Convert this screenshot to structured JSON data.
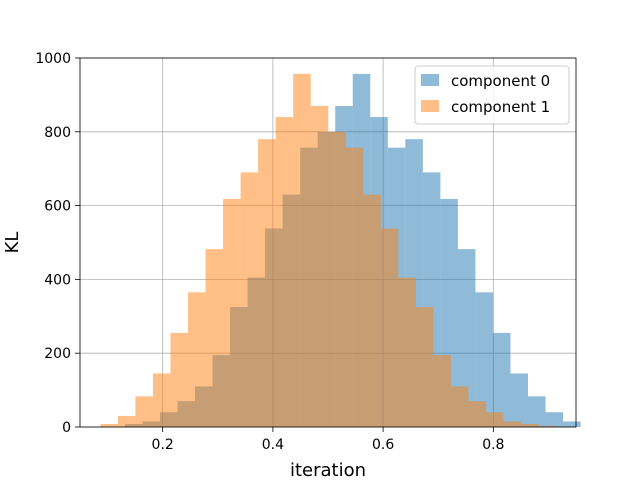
{
  "chart_data": {
    "type": "bar",
    "title": "",
    "xlabel": "iteration",
    "ylabel": "KL",
    "xlim": [
      0.05,
      0.95
    ],
    "ylim": [
      0,
      1000
    ],
    "xticks": [
      0.2,
      0.4,
      0.6,
      0.8
    ],
    "xtick_labels": [
      "0.2",
      "0.4",
      "0.6",
      "0.8"
    ],
    "yticks": [
      0,
      200,
      400,
      600,
      800,
      1000
    ],
    "ytick_labels": [
      "0",
      "200",
      "400",
      "600",
      "800",
      "1000"
    ],
    "grid": true,
    "legend_position": "top-right",
    "bin_edges": [
      0.087,
      0.1188,
      0.1506,
      0.1823,
      0.2141,
      0.2459,
      0.2777,
      0.3095,
      0.3413,
      0.373,
      0.4048,
      0.4366,
      0.4684,
      0.5002,
      0.532,
      0.5638,
      0.5955,
      0.6273,
      0.6591,
      0.6909,
      0.7227,
      0.7545,
      0.7863,
      0.818,
      0.8498,
      0.8816,
      0.9134
    ],
    "series": [
      {
        "name": "component 0",
        "color": "#1f77b4",
        "alpha": 0.5,
        "bin_start": 0.1315,
        "bin_width": 0.0318,
        "values": [
          8,
          15,
          40,
          70,
          110,
          195,
          325,
          405,
          538,
          630,
          757,
          800,
          870,
          957,
          840,
          757,
          780,
          690,
          618,
          482,
          365,
          255,
          145,
          83,
          40,
          15
        ]
      },
      {
        "name": "component 1",
        "color": "#ff7f0e",
        "alpha": 0.5,
        "bin_start": 0.087,
        "bin_width": 0.0318,
        "values": [
          8,
          30,
          83,
          145,
          255,
          365,
          482,
          618,
          690,
          780,
          840,
          957,
          870,
          800,
          757,
          630,
          538,
          405,
          325,
          195,
          110,
          70,
          40,
          15,
          8,
          3
        ]
      }
    ]
  }
}
